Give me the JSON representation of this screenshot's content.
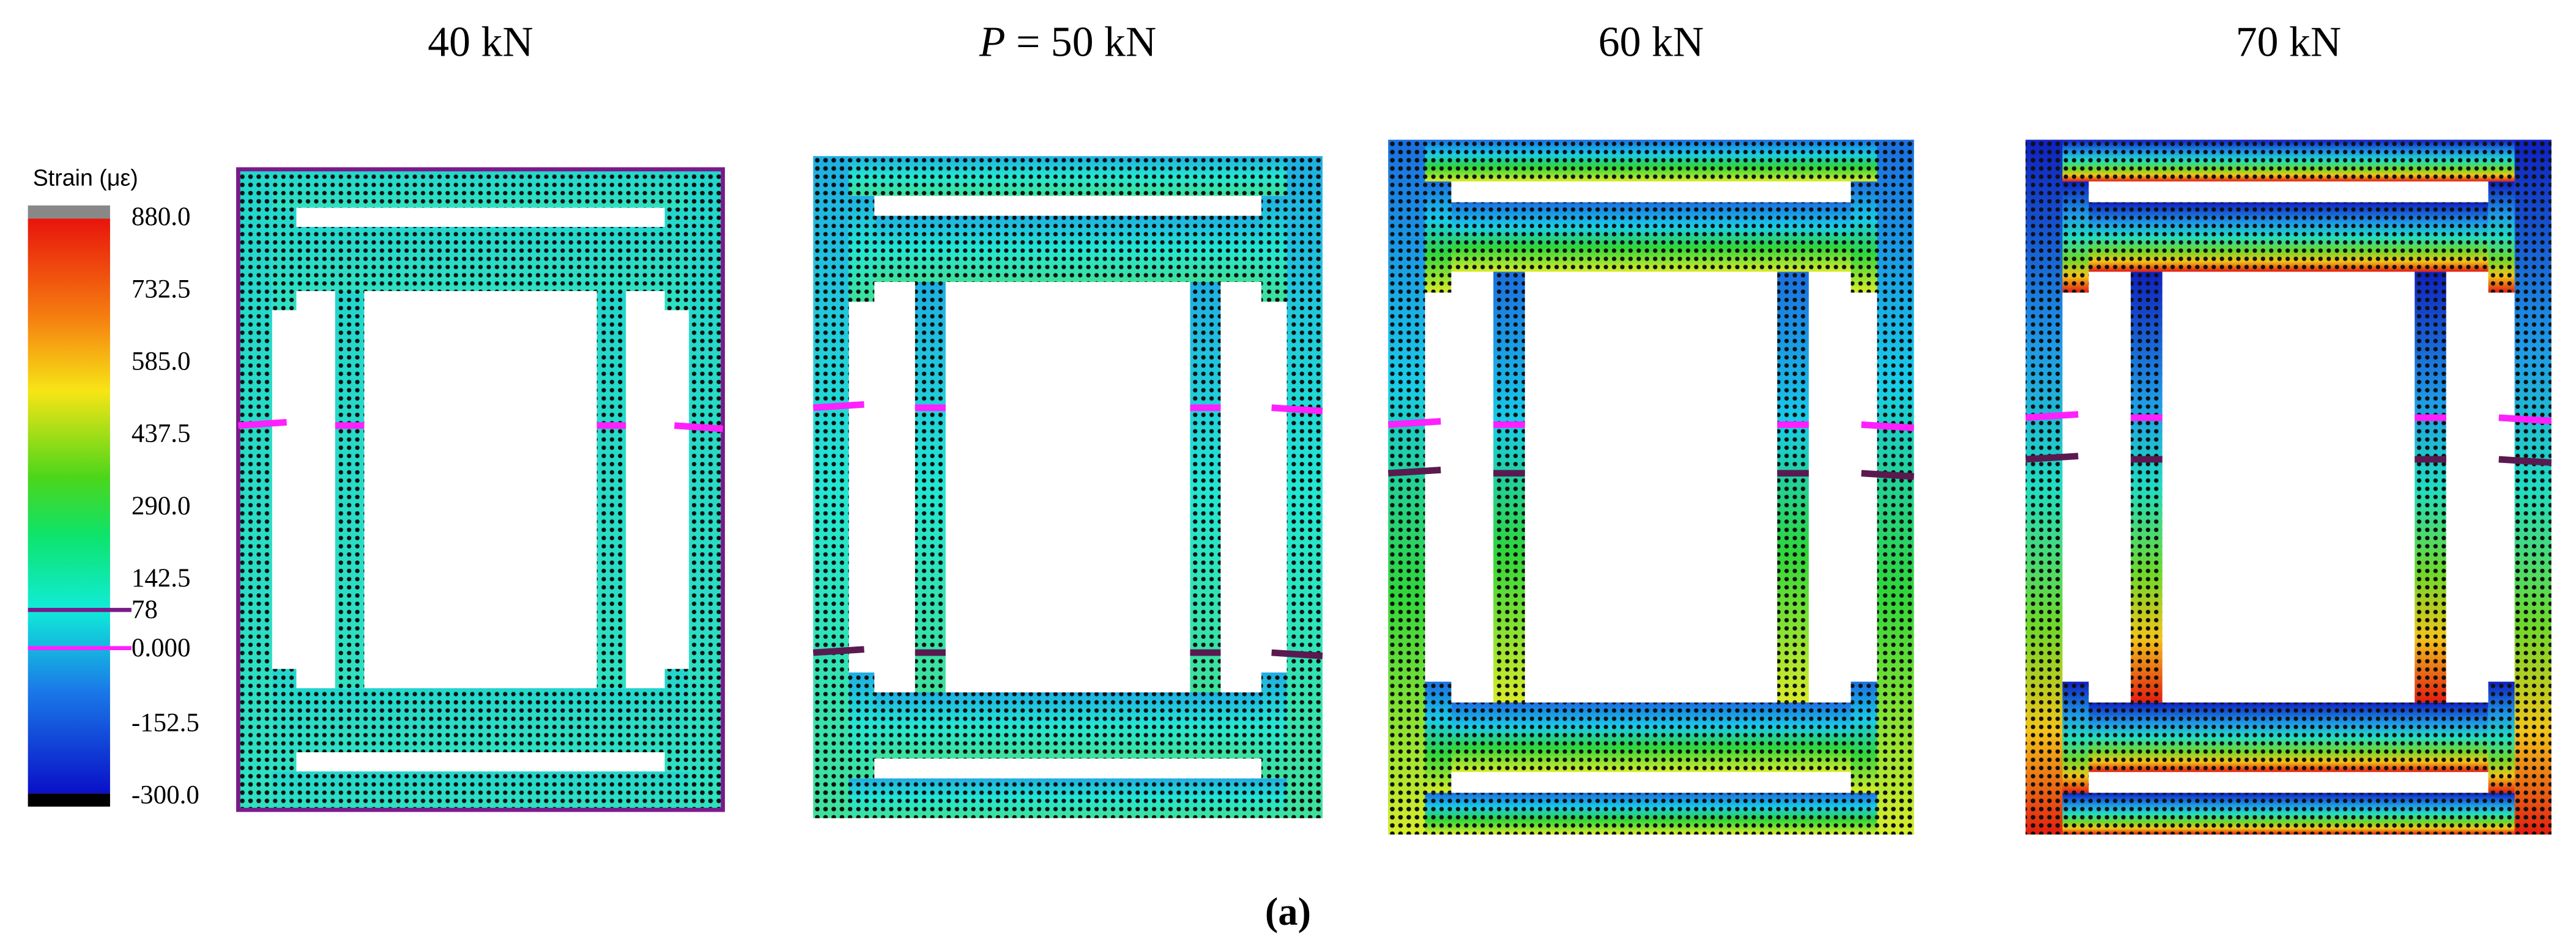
{
  "panels": [
    {
      "title": "40 kN"
    },
    {
      "title_italic": "P",
      "title": "= 50 kN"
    },
    {
      "title": "60 kN"
    },
    {
      "title": "70 kN"
    }
  ],
  "colorbar": {
    "title": "Strain (με)",
    "ticks": [
      {
        "value": 880,
        "label": "880.0"
      },
      {
        "value": 732.5,
        "label": "732.5"
      },
      {
        "value": 585,
        "label": "585.0"
      },
      {
        "value": 437.5,
        "label": "437.5"
      },
      {
        "value": 290,
        "label": "290.0"
      },
      {
        "value": 142.5,
        "label": "142.5"
      },
      78,
      {
        "value": 0,
        "label": "0.000"
      },
      {
        "value": -152.5,
        "label": "-152.5"
      },
      {
        "value": -300,
        "label": "-300.0"
      }
    ]
  },
  "caption": "(a)"
}
